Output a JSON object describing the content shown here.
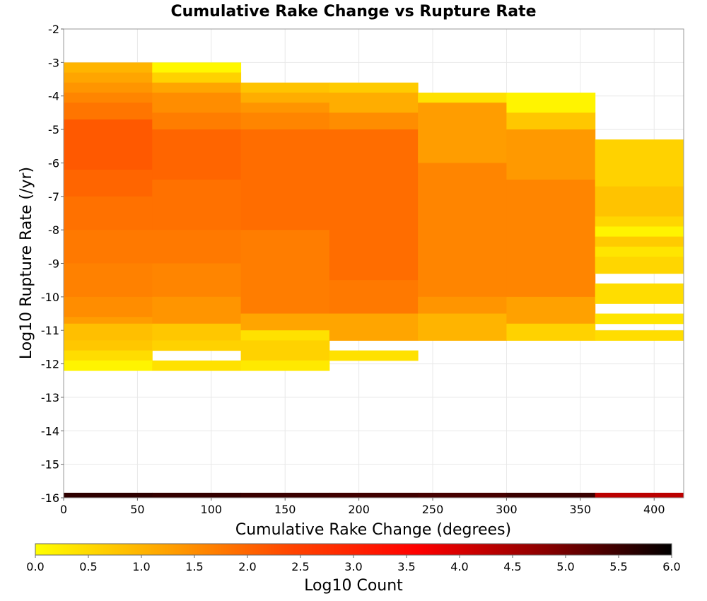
{
  "chart_data": {
    "type": "heatmap",
    "title": "Cumulative Rake Change vs Rupture Rate",
    "xlabel": "Cumulative Rake Change (degrees)",
    "ylabel": "Log10 Rupture Rate (/yr)",
    "xlim": [
      0,
      420
    ],
    "ylim": [
      -16,
      -2
    ],
    "x_ticks": [
      "0",
      "50",
      "100",
      "150",
      "200",
      "250",
      "300",
      "350",
      "400"
    ],
    "y_ticks": [
      "-2",
      "-3",
      "-4",
      "-5",
      "-6",
      "-7",
      "-8",
      "-9",
      "-10",
      "-11",
      "-12",
      "-13",
      "-14",
      "-15",
      "-16"
    ],
    "grid": true,
    "x_bins": [
      0,
      60,
      120,
      180,
      240,
      300,
      360
    ],
    "bin_width": 60,
    "colorbar": {
      "label": "Log10 Count",
      "range": [
        0,
        6
      ],
      "ticks": [
        "0.0",
        "0.5",
        "1.0",
        "1.5",
        "2.0",
        "2.5",
        "3.0",
        "3.5",
        "4.0",
        "4.5",
        "5.0",
        "5.5",
        "6.0"
      ],
      "colors": [
        "#ffff00",
        "#ffa500",
        "#ff4500",
        "#ff0000",
        "#8b0000",
        "#000000"
      ],
      "placement": "bottom"
    },
    "columns": [
      {
        "x_start": 0,
        "cells": [
          {
            "y_top": -3.0,
            "y_bottom": -3.3,
            "value": 1.0
          },
          {
            "y_top": -3.3,
            "y_bottom": -3.6,
            "value": 1.2
          },
          {
            "y_top": -3.6,
            "y_bottom": -3.9,
            "value": 1.4
          },
          {
            "y_top": -3.9,
            "y_bottom": -4.2,
            "value": 1.6
          },
          {
            "y_top": -4.2,
            "y_bottom": -4.7,
            "value": 1.8
          },
          {
            "y_top": -4.7,
            "y_bottom": -6.2,
            "value": 2.15
          },
          {
            "y_top": -6.2,
            "y_bottom": -7.0,
            "value": 2.0
          },
          {
            "y_top": -7.0,
            "y_bottom": -8.0,
            "value": 1.85
          },
          {
            "y_top": -8.0,
            "y_bottom": -9.0,
            "value": 1.75
          },
          {
            "y_top": -9.0,
            "y_bottom": -10.0,
            "value": 1.65
          },
          {
            "y_top": -10.0,
            "y_bottom": -10.6,
            "value": 1.5
          },
          {
            "y_top": -10.6,
            "y_bottom": -10.8,
            "value": 1.3
          },
          {
            "y_top": -10.8,
            "y_bottom": -11.3,
            "value": 0.85
          },
          {
            "y_top": -11.3,
            "y_bottom": -11.6,
            "value": 0.75
          },
          {
            "y_top": -11.6,
            "y_bottom": -11.9,
            "value": 0.45
          },
          {
            "y_top": -11.9,
            "y_bottom": -12.2,
            "value": 0.15
          }
        ]
      },
      {
        "x_start": 60,
        "cells": [
          {
            "y_top": -3.0,
            "y_bottom": -3.3,
            "value": 0.1
          },
          {
            "y_top": -3.3,
            "y_bottom": -3.6,
            "value": 0.6
          },
          {
            "y_top": -3.6,
            "y_bottom": -3.9,
            "value": 1.2
          },
          {
            "y_top": -3.9,
            "y_bottom": -4.5,
            "value": 1.5
          },
          {
            "y_top": -4.5,
            "y_bottom": -5.0,
            "value": 1.7
          },
          {
            "y_top": -5.0,
            "y_bottom": -6.5,
            "value": 2.0
          },
          {
            "y_top": -6.5,
            "y_bottom": -8.0,
            "value": 1.85
          },
          {
            "y_top": -8.0,
            "y_bottom": -9.0,
            "value": 1.75
          },
          {
            "y_top": -9.0,
            "y_bottom": -10.0,
            "value": 1.6
          },
          {
            "y_top": -10.0,
            "y_bottom": -10.8,
            "value": 1.4
          },
          {
            "y_top": -10.8,
            "y_bottom": -11.3,
            "value": 0.75
          },
          {
            "y_top": -11.3,
            "y_bottom": -11.6,
            "value": 0.6
          },
          {
            "y_top": -11.9,
            "y_bottom": -12.2,
            "value": 0.4
          }
        ]
      },
      {
        "x_start": 120,
        "cells": [
          {
            "y_top": -3.6,
            "y_bottom": -3.9,
            "value": 0.8
          },
          {
            "y_top": -3.9,
            "y_bottom": -4.2,
            "value": 1.1
          },
          {
            "y_top": -4.2,
            "y_bottom": -4.5,
            "value": 1.4
          },
          {
            "y_top": -4.5,
            "y_bottom": -5.0,
            "value": 1.6
          },
          {
            "y_top": -5.0,
            "y_bottom": -8.0,
            "value": 1.9
          },
          {
            "y_top": -8.0,
            "y_bottom": -10.5,
            "value": 1.7
          },
          {
            "y_top": -10.5,
            "y_bottom": -11.0,
            "value": 1.2
          },
          {
            "y_top": -11.0,
            "y_bottom": -11.3,
            "value": 0.4
          },
          {
            "y_top": -11.3,
            "y_bottom": -11.9,
            "value": 0.6
          },
          {
            "y_top": -11.9,
            "y_bottom": -12.2,
            "value": 0.3
          }
        ]
      },
      {
        "x_start": 180,
        "cells": [
          {
            "y_top": -3.6,
            "y_bottom": -3.9,
            "value": 0.7
          },
          {
            "y_top": -3.9,
            "y_bottom": -4.5,
            "value": 1.1
          },
          {
            "y_top": -4.5,
            "y_bottom": -5.0,
            "value": 1.5
          },
          {
            "y_top": -5.0,
            "y_bottom": -9.5,
            "value": 1.9
          },
          {
            "y_top": -9.5,
            "y_bottom": -10.5,
            "value": 1.75
          },
          {
            "y_top": -10.5,
            "y_bottom": -11.3,
            "value": 1.2
          },
          {
            "y_top": -11.6,
            "y_bottom": -11.9,
            "value": 0.4
          }
        ]
      },
      {
        "x_start": 240,
        "cells": [
          {
            "y_top": -3.9,
            "y_bottom": -4.2,
            "value": 0.4
          },
          {
            "y_top": -4.2,
            "y_bottom": -6.0,
            "value": 1.3
          },
          {
            "y_top": -6.0,
            "y_bottom": -10.0,
            "value": 1.6
          },
          {
            "y_top": -10.0,
            "y_bottom": -10.5,
            "value": 1.4
          },
          {
            "y_top": -10.5,
            "y_bottom": -11.3,
            "value": 1.0
          }
        ]
      },
      {
        "x_start": 300,
        "cells": [
          {
            "y_top": -3.9,
            "y_bottom": -4.5,
            "value": 0.15
          },
          {
            "y_top": -4.5,
            "y_bottom": -5.0,
            "value": 0.75
          },
          {
            "y_top": -5.0,
            "y_bottom": -6.5,
            "value": 1.35
          },
          {
            "y_top": -6.5,
            "y_bottom": -10.0,
            "value": 1.6
          },
          {
            "y_top": -10.0,
            "y_bottom": -10.8,
            "value": 1.25
          },
          {
            "y_top": -10.8,
            "y_bottom": -11.3,
            "value": 0.6
          }
        ]
      },
      {
        "x_start": 360,
        "cells": [
          {
            "y_top": -5.3,
            "y_bottom": -6.7,
            "value": 0.6
          },
          {
            "y_top": -6.7,
            "y_bottom": -7.6,
            "value": 0.8
          },
          {
            "y_top": -7.6,
            "y_bottom": -7.9,
            "value": 0.55
          },
          {
            "y_top": -7.9,
            "y_bottom": -8.2,
            "value": 0.15
          },
          {
            "y_top": -8.2,
            "y_bottom": -8.5,
            "value": 0.7
          },
          {
            "y_top": -8.5,
            "y_bottom": -8.8,
            "value": 0.35
          },
          {
            "y_top": -8.8,
            "y_bottom": -9.3,
            "value": 0.55
          },
          {
            "y_top": -9.6,
            "y_bottom": -10.2,
            "value": 0.45
          },
          {
            "y_top": -10.5,
            "y_bottom": -10.8,
            "value": 0.35
          },
          {
            "y_top": -11.0,
            "y_bottom": -11.3,
            "value": 0.45
          }
        ]
      }
    ],
    "bottom_row": {
      "y_top": -15.85,
      "y_bottom": -16.0,
      "values": [
        5.6,
        5.55,
        5.5,
        5.45,
        5.4,
        5.5,
        4.3
      ]
    }
  }
}
